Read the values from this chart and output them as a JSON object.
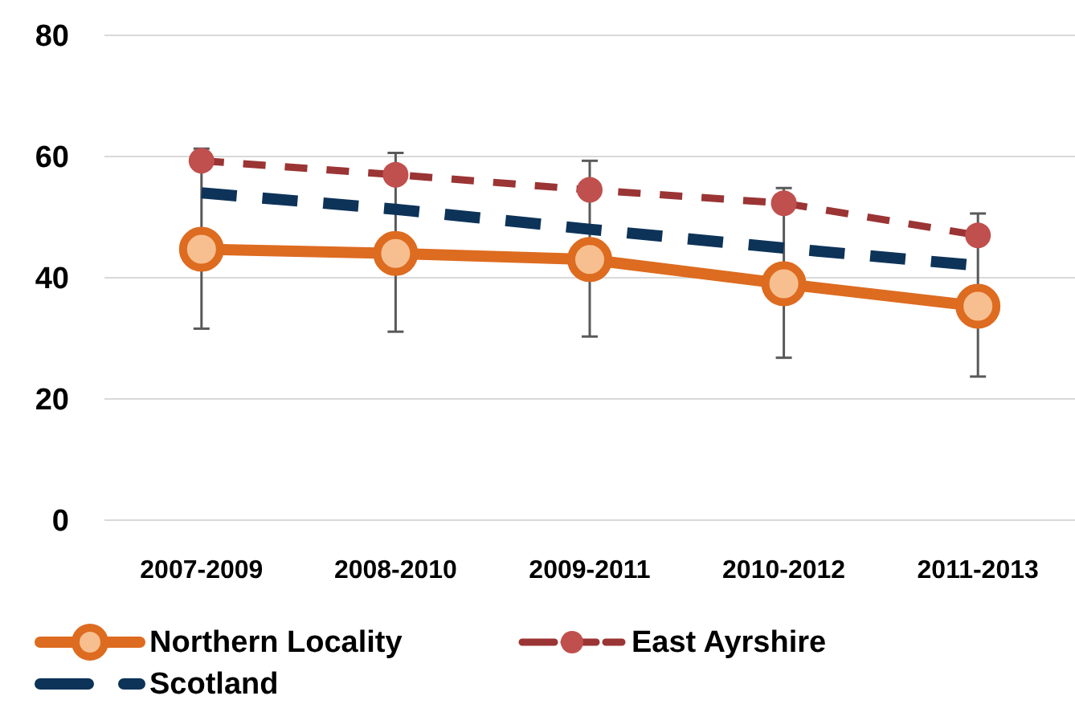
{
  "chart_data": {
    "type": "line",
    "categories": [
      "2007-2009",
      "2008-2010",
      "2009-2011",
      "2010-2012",
      "2011-2013"
    ],
    "series": [
      {
        "name": "Northern Locality",
        "color": "#dd6b20",
        "values": [
          44.7,
          44.0,
          43.0,
          39.0,
          35.3
        ],
        "marker": "circle",
        "line_style": "solid",
        "errors": [
          [
            31.6,
            61.3
          ],
          [
            31.1,
            60.6
          ],
          [
            30.3,
            59.3
          ],
          [
            26.8,
            54.8
          ],
          [
            23.7,
            50.6
          ]
        ]
      },
      {
        "name": "East Ayrshire",
        "color": "#9b3434",
        "values": [
          59.3,
          57.0,
          54.5,
          52.3,
          47.0
        ],
        "marker": "circle",
        "line_style": "dashed"
      },
      {
        "name": "Scotland",
        "color": "#0d3358",
        "values": [
          54.0,
          51.3,
          48.0,
          44.9,
          42.0
        ],
        "marker": "none",
        "line_style": "dashed"
      }
    ],
    "ylim": [
      0,
      80
    ],
    "yticks": [
      0,
      20,
      40,
      60,
      80
    ],
    "grid": "y",
    "legend": "bottom"
  }
}
